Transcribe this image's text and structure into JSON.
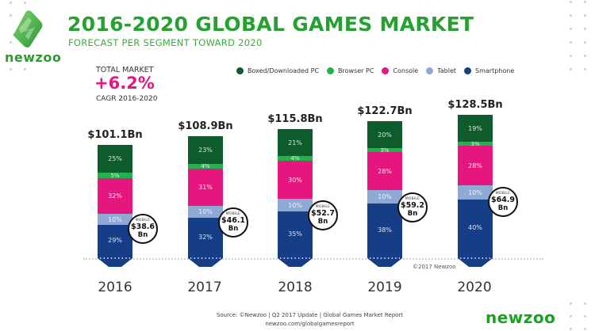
{
  "header": {
    "title": "2016-2020 GLOBAL GAMES MARKET",
    "subtitle": "FORECAST PER SEGMENT TOWARD 2020",
    "logo_text": "newzoo"
  },
  "total_market": {
    "label": "TOTAL MARKET",
    "value": "+6.2%",
    "sub": "CAGR 2016-2020"
  },
  "legend": [
    {
      "label": "Boxed/Downloaded PC",
      "color": "#0e5b2c"
    },
    {
      "label": "Browser PC",
      "color": "#21b24b"
    },
    {
      "label": "Console",
      "color": "#e5177e"
    },
    {
      "label": "Tablet",
      "color": "#8ea9d3"
    },
    {
      "label": "Smartphone",
      "color": "#163e86"
    }
  ],
  "bars": [
    {
      "year": "2016",
      "total": "$101.1Bn",
      "pc": "25%",
      "browser": "5%",
      "console": "32%",
      "tablet": "10%",
      "smartphone": "29%",
      "mobile_label": "MOBILE",
      "mobile_value": "$38.6",
      "mobile_unit": "Bn"
    },
    {
      "year": "2017",
      "total": "$108.9Bn",
      "pc": "23%",
      "browser": "4%",
      "console": "31%",
      "tablet": "10%",
      "smartphone": "32%",
      "mobile_label": "MOBILE",
      "mobile_value": "$46.1",
      "mobile_unit": "Bn"
    },
    {
      "year": "2018",
      "total": "$115.8Bn",
      "pc": "21%",
      "browser": "4%",
      "console": "30%",
      "tablet": "10%",
      "smartphone": "35%",
      "mobile_label": "MOBILE",
      "mobile_value": "$52.7",
      "mobile_unit": "Bn"
    },
    {
      "year": "2019",
      "total": "$122.7Bn",
      "pc": "20%",
      "browser": "3%",
      "console": "28%",
      "tablet": "10%",
      "smartphone": "38%",
      "mobile_label": "MOBILE",
      "mobile_value": "$59.2",
      "mobile_unit": "Bn"
    },
    {
      "year": "2020",
      "total": "$128.5Bn",
      "pc": "19%",
      "browser": "3%",
      "console": "28%",
      "tablet": "10%",
      "smartphone": "40%",
      "mobile_label": "MOBILE",
      "mobile_value": "$64.9",
      "mobile_unit": "Bn"
    }
  ],
  "footer": {
    "copyright": "©2017 Newzoo",
    "source": "Source: ©Newzoo | Q2 2017 Update | Global Games Market Report",
    "url": "newzoo.com/globalgamesreport",
    "brand": "newzoo"
  },
  "chart_data": {
    "type": "bar",
    "stacked": true,
    "title": "2016-2020 GLOBAL GAMES MARKET",
    "subtitle": "FORECAST PER SEGMENT TOWARD 2020",
    "categories": [
      "2016",
      "2017",
      "2018",
      "2019",
      "2020"
    ],
    "totals_bn": [
      101.1,
      108.9,
      115.8,
      122.7,
      128.5
    ],
    "unit": "percent of total market",
    "series": [
      {
        "name": "Smartphone",
        "color": "#163e86",
        "values": [
          29,
          32,
          35,
          38,
          40
        ]
      },
      {
        "name": "Tablet",
        "color": "#8ea9d3",
        "values": [
          10,
          10,
          10,
          10,
          10
        ]
      },
      {
        "name": "Console",
        "color": "#e5177e",
        "values": [
          32,
          31,
          30,
          28,
          28
        ]
      },
      {
        "name": "Browser PC",
        "color": "#21b24b",
        "values": [
          5,
          4,
          4,
          3,
          3
        ]
      },
      {
        "name": "Boxed/Downloaded PC",
        "color": "#0e5b2c",
        "values": [
          25,
          23,
          21,
          20,
          19
        ]
      }
    ],
    "annotations": {
      "mobile_bn": [
        38.6,
        46.1,
        52.7,
        59.2,
        64.9
      ],
      "total_market_cagr": "+6.2%",
      "cagr_period": "2016-2020"
    },
    "legend_position": "top",
    "grid": false,
    "xlabel": "",
    "ylabel": ""
  }
}
